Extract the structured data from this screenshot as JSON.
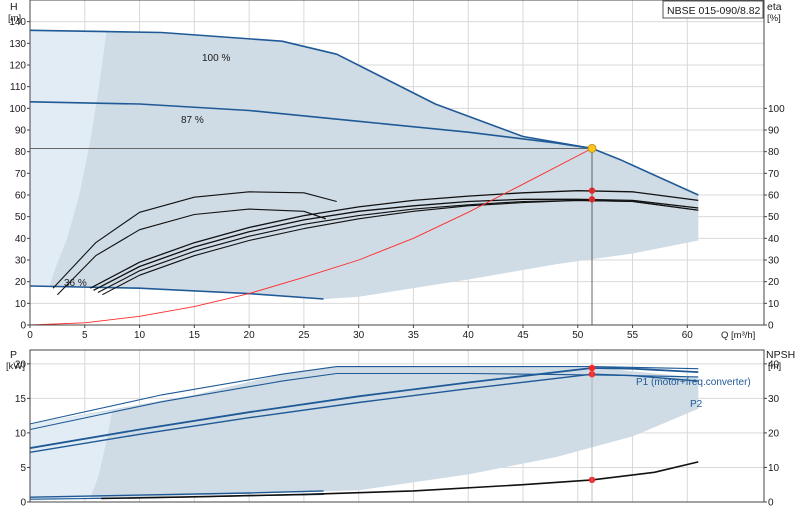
{
  "model": "NBSE 015-090/8.82",
  "colors": {
    "envelope": "#cfdbe5",
    "envelope_light": "#e2ecf5",
    "pump_curve": "#1f5a96",
    "efficiency": "#111111",
    "system_curve": "#ff2a2a",
    "duty_point": "#ffc61a",
    "marker": "#ff2222",
    "grid": "#d9d9d9",
    "axis": "#444444"
  },
  "chart_data": [
    {
      "id": "head",
      "type": "line",
      "xlabel": "Q [m³/h]",
      "ylabel_left": [
        "H",
        "[m]"
      ],
      "ylabel_right": [
        "eta",
        "[%]"
      ],
      "xlim": [
        0,
        67
      ],
      "ylim_left": [
        0,
        150
      ],
      "ylim_right": [
        0,
        150
      ],
      "x_ticks": [
        0,
        5,
        10,
        15,
        20,
        25,
        30,
        35,
        40,
        45,
        50,
        55,
        60
      ],
      "y_ticks_left": [
        0,
        10,
        20,
        30,
        40,
        50,
        60,
        70,
        80,
        90,
        100,
        110,
        120,
        130,
        140
      ],
      "y_ticks_right": [
        0,
        10,
        20,
        30,
        40,
        50,
        60,
        70,
        80,
        90,
        100
      ],
      "grid": true,
      "duty_point": {
        "x": 51.3,
        "y": 81.5
      },
      "markers": [
        {
          "x": 51.3,
          "y": 62
        },
        {
          "x": 51.3,
          "y": 58
        }
      ],
      "envelope": [
        [
          0,
          136
        ],
        [
          12,
          135
        ],
        [
          23,
          131
        ],
        [
          28,
          125
        ],
        [
          37,
          102
        ],
        [
          45,
          87
        ],
        [
          51.3,
          81.5
        ],
        [
          61,
          60
        ],
        [
          61,
          39
        ],
        [
          55,
          33
        ],
        [
          48,
          28
        ],
        [
          40,
          21
        ],
        [
          30,
          13
        ],
        [
          27,
          12
        ],
        [
          20,
          15
        ],
        [
          12,
          17
        ],
        [
          5,
          18
        ],
        [
          0,
          18
        ]
      ],
      "envelope_light": [
        [
          0,
          136
        ],
        [
          7,
          136
        ],
        [
          6.3,
          110
        ],
        [
          5.5,
          85
        ],
        [
          4.5,
          60
        ],
        [
          3.4,
          40
        ],
        [
          2.3,
          26
        ],
        [
          1.8,
          18
        ],
        [
          0,
          18
        ]
      ],
      "series": [
        {
          "name": "100 %",
          "role": "pump",
          "x": [
            0,
            12,
            23,
            28,
            37,
            45,
            51.3,
            54,
            61
          ],
          "y": [
            136,
            135,
            131,
            125,
            102,
            87,
            81.5,
            76,
            60
          ]
        },
        {
          "name": "87 %",
          "role": "pump",
          "x": [
            0,
            10,
            20,
            30,
            40,
            48,
            51.3
          ],
          "y": [
            103,
            102,
            99,
            94,
            89,
            84,
            81.5
          ]
        },
        {
          "name": "36 %",
          "role": "pump",
          "x": [
            0,
            10,
            20,
            26.8
          ],
          "y": [
            18,
            17,
            14.5,
            12
          ]
        },
        {
          "name": "",
          "role": "efficiency",
          "width": 1.1,
          "x": [
            2.1,
            6,
            10,
            15,
            20,
            25,
            28
          ],
          "y": [
            17,
            38,
            52,
            59,
            61.5,
            61,
            57
          ]
        },
        {
          "name": "",
          "role": "efficiency",
          "width": 1.1,
          "x": [
            2.5,
            6,
            10,
            15,
            20,
            25,
            27
          ],
          "y": [
            14,
            32,
            44,
            51,
            53.5,
            52.5,
            49
          ]
        },
        {
          "name": "",
          "role": "efficiency",
          "width": 1.3,
          "x": [
            5.5,
            10,
            15,
            20,
            25,
            30,
            35,
            40,
            45,
            50,
            55,
            61
          ],
          "y": [
            17,
            29,
            38,
            45,
            50.5,
            54.5,
            57.5,
            59.5,
            61,
            62,
            61.5,
            57.5
          ]
        },
        {
          "name": "",
          "role": "efficiency",
          "width": 1.3,
          "x": [
            5.8,
            10,
            15,
            20,
            25,
            30,
            35,
            40,
            45,
            50,
            55,
            61
          ],
          "y": [
            16,
            27,
            36,
            43,
            48.5,
            52.5,
            55,
            57,
            58,
            58,
            57.5,
            54
          ]
        },
        {
          "name": "",
          "role": "efficiency",
          "width": 1.1,
          "x": [
            6.2,
            10,
            15,
            20,
            25,
            30,
            35,
            40,
            45,
            50,
            55,
            61
          ],
          "y": [
            15,
            25,
            34,
            41,
            46.5,
            50.5,
            53.5,
            55.5,
            57,
            57.5,
            57,
            53
          ]
        },
        {
          "name": "",
          "role": "efficiency",
          "width": 1.1,
          "x": [
            6.6,
            10,
            15,
            20,
            25,
            30,
            35,
            40,
            45,
            50,
            55,
            61
          ],
          "y": [
            14,
            23,
            32,
            39,
            44.5,
            49,
            52.5,
            55,
            56.5,
            57.5,
            57,
            53
          ]
        },
        {
          "name": "",
          "role": "system",
          "width": 0.9,
          "x": [
            0,
            5,
            10,
            15,
            20,
            25,
            30,
            35,
            40,
            45,
            51.3
          ],
          "y": [
            0,
            1,
            4,
            8.5,
            14.5,
            22,
            30,
            40,
            52,
            65,
            81.5
          ]
        }
      ]
    },
    {
      "id": "power",
      "type": "line",
      "xlabel": "",
      "ylabel_left": [
        "P",
        "[kW]"
      ],
      "ylabel_right": [
        "NPSH",
        "[m]"
      ],
      "xlim": [
        0,
        67
      ],
      "ylim_left": [
        0,
        22
      ],
      "ylim_right": [
        0,
        44
      ],
      "y_ticks_left": [
        0,
        5,
        10,
        15,
        20
      ],
      "y_ticks_right": [
        0,
        10,
        20,
        30,
        40
      ],
      "grid": true,
      "markers": [
        {
          "x": 51.3,
          "y": 19.4
        },
        {
          "x": 51.3,
          "y": 18.5
        },
        {
          "x": 51.3,
          "y": 3.2
        }
      ],
      "envelope": [
        [
          0,
          11.3
        ],
        [
          15,
          15.5
        ],
        [
          23,
          18.5
        ],
        [
          28,
          19.6
        ],
        [
          40,
          19.6
        ],
        [
          51.3,
          19.5
        ],
        [
          61,
          18
        ],
        [
          61,
          13.5
        ],
        [
          55,
          9.5
        ],
        [
          48,
          6.5
        ],
        [
          40,
          4
        ],
        [
          30,
          1.7
        ],
        [
          0,
          0.2
        ]
      ],
      "envelope_light": [
        [
          0,
          0.2
        ],
        [
          5.5,
          0.5
        ],
        [
          6.3,
          4
        ],
        [
          7,
          9
        ],
        [
          7.5,
          13.2
        ],
        [
          0,
          11.3
        ]
      ],
      "series": [
        {
          "name": "P1 (motor+freq.converter)",
          "role": "pump",
          "width": 1.8,
          "x": [
            0,
            10,
            20,
            30,
            40,
            51.3,
            55,
            61
          ],
          "y": [
            7.8,
            10.5,
            13,
            15.3,
            17.3,
            19.4,
            19.3,
            18.8
          ]
        },
        {
          "name": "P2",
          "role": "pump",
          "width": 1.4,
          "x": [
            0,
            10,
            20,
            30,
            40,
            51.3,
            55,
            61
          ],
          "y": [
            7.2,
            9.8,
            12.2,
            14.4,
            16.4,
            18.5,
            18.3,
            17.5
          ]
        },
        {
          "name": "",
          "role": "pump",
          "width": 1.1,
          "x": [
            0,
            12,
            23,
            28,
            40,
            51.3,
            61
          ],
          "y": [
            11.3,
            15.5,
            18.5,
            19.6,
            19.6,
            19.6,
            19.3
          ]
        },
        {
          "name": "",
          "role": "pump",
          "width": 1.1,
          "x": [
            0,
            12,
            23,
            28,
            40,
            51.3,
            61
          ],
          "y": [
            10.5,
            14.5,
            17.5,
            18.6,
            18.6,
            18.4,
            18.1
          ]
        },
        {
          "name": "",
          "role": "pump",
          "width": 1.4,
          "x": [
            0,
            10,
            20,
            26.8
          ],
          "y": [
            0.7,
            1.0,
            1.3,
            1.6
          ]
        },
        {
          "name": "",
          "role": "pump",
          "width": 1.1,
          "x": [
            0,
            10,
            20,
            26.8
          ],
          "y": [
            0.4,
            0.6,
            0.9,
            1.1
          ]
        },
        {
          "name": "",
          "role": "npsh",
          "width": 1.6,
          "x": [
            6.5,
            15,
            25,
            35,
            45,
            51.3,
            57,
            61
          ],
          "y": [
            0.5,
            0.75,
            1.1,
            1.6,
            2.5,
            3.2,
            4.3,
            5.8
          ]
        }
      ]
    }
  ],
  "labels": {
    "head_curve_labels": [
      "100 %",
      "87 %",
      "36 %"
    ],
    "power_curve_labels": [
      "P1 (motor+freq.converter)",
      "P2"
    ]
  }
}
